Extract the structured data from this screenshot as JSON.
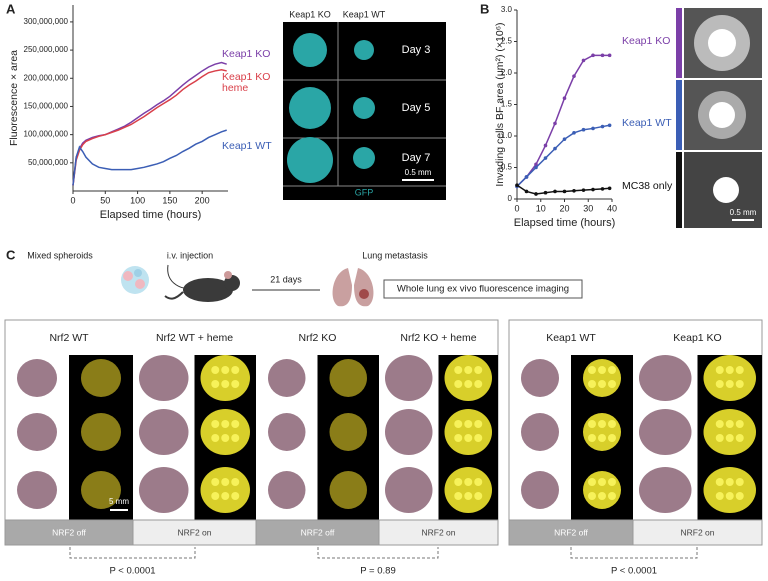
{
  "panel_labels": [
    "A",
    "B",
    "C"
  ],
  "chart_data": [
    {
      "type": "line",
      "xlabel": "Elapsed time (hours)",
      "ylabel": "Fluorescence × area",
      "x": [
        0,
        5,
        10,
        15,
        20,
        30,
        40,
        50,
        60,
        70,
        80,
        90,
        100,
        110,
        120,
        130,
        140,
        150,
        160,
        170,
        180,
        190,
        200,
        210,
        220,
        230,
        238
      ],
      "xlim": [
        0,
        240
      ],
      "xticks": [
        0,
        50,
        100,
        150,
        200
      ],
      "ylim": [
        0,
        330000000
      ],
      "yticks": [
        {
          "value": 50000000,
          "label": "50,000,000"
        },
        {
          "value": 100000000,
          "label": "100,000,000"
        },
        {
          "value": 150000000,
          "label": "150,000,000"
        },
        {
          "value": 200000000,
          "label": "200,000,000"
        },
        {
          "value": 250000000,
          "label": "250,000,000"
        },
        {
          "value": 300000000,
          "label": "300,000,000"
        }
      ],
      "series": [
        {
          "name": "Keap1 KO",
          "color": "#7b3fa8",
          "values": [
            10000000,
            60000000,
            75000000,
            85000000,
            90000000,
            95000000,
            98000000,
            100000000,
            105000000,
            110000000,
            115000000,
            122000000,
            130000000,
            138000000,
            145000000,
            153000000,
            160000000,
            168000000,
            178000000,
            188000000,
            197000000,
            205000000,
            213000000,
            220000000,
            225000000,
            228000000,
            225000000
          ]
        },
        {
          "name": "Keap1 KO heme",
          "color": "#d9404a",
          "values": [
            10000000,
            55000000,
            72000000,
            82000000,
            88000000,
            93000000,
            97000000,
            100000000,
            104000000,
            108000000,
            113000000,
            118000000,
            125000000,
            132000000,
            140000000,
            148000000,
            155000000,
            162000000,
            170000000,
            180000000,
            188000000,
            195000000,
            203000000,
            210000000,
            213000000,
            215000000,
            213000000
          ]
        },
        {
          "name": "Keap1 WT",
          "color": "#3b5eb5",
          "values": [
            10000000,
            60000000,
            78000000,
            70000000,
            60000000,
            48000000,
            42000000,
            40000000,
            38000000,
            38000000,
            38000000,
            38000000,
            40000000,
            42000000,
            45000000,
            48000000,
            52000000,
            58000000,
            63000000,
            70000000,
            76000000,
            83000000,
            88000000,
            95000000,
            100000000,
            105000000,
            108000000
          ]
        }
      ]
    },
    {
      "type": "line",
      "xlabel": "Elapsed time (hours)",
      "ylabel": "Invading cells BF area (μm²) (×10⁶)",
      "x": [
        0,
        4,
        8,
        12,
        16,
        20,
        24,
        28,
        32,
        36,
        39
      ],
      "xlim": [
        0,
        40
      ],
      "xticks": [
        0,
        10,
        20,
        30,
        40
      ],
      "ylim": [
        0,
        3
      ],
      "yticks": [
        0,
        0.5,
        {
          "value": 1,
          "label": "1.0"
        },
        1.5,
        {
          "value": 2,
          "label": "2.0"
        },
        2.5,
        {
          "value": 3,
          "label": "3.0"
        }
      ],
      "markers": true,
      "series": [
        {
          "name": "Keap1 KO",
          "color": "#7b3fa8",
          "values": [
            0.2,
            0.35,
            0.55,
            0.85,
            1.2,
            1.6,
            1.95,
            2.2,
            2.28,
            2.28,
            2.28
          ]
        },
        {
          "name": "Keap1 WT",
          "color": "#3b5eb5",
          "values": [
            0.2,
            0.35,
            0.5,
            0.65,
            0.8,
            0.95,
            1.05,
            1.1,
            1.12,
            1.15,
            1.17
          ]
        },
        {
          "name": "MC38 only",
          "color": "#111111",
          "values": [
            0.22,
            0.12,
            0.08,
            0.1,
            0.12,
            0.12,
            0.13,
            0.14,
            0.15,
            0.16,
            0.17
          ]
        }
      ]
    }
  ],
  "microscopy": {
    "columns": [
      "Keap1 KO",
      "Keap1 WT"
    ],
    "rows": [
      "Day 3",
      "Day 5",
      "Day 7"
    ],
    "scale_bar": "0.5 mm",
    "channel": "GFP"
  },
  "invasion_images": {
    "scale_bar": "0.5 mm"
  },
  "schematic": {
    "steps": [
      "Mixed spheroids",
      "i.v. injection",
      "21 days",
      "Lung metastasis"
    ],
    "readout": "Whole lung ex vivo fluorescence imaging"
  },
  "lung_panels": {
    "groups": [
      "Nrf2 WT",
      "Nrf2 WT + heme",
      "Nrf2 KO",
      "Nrf2 KO + heme",
      "Keap1 WT",
      "Keap1 KO"
    ],
    "scale_bar": "5 mm",
    "status": [
      "NRF2 off",
      "NRF2 on",
      "NRF2 off",
      "NRF2 on",
      "NRF2 off",
      "NRF2 on"
    ],
    "comparisons": [
      "P < 0.0001",
      "P = 0.89",
      "P < 0.0001"
    ]
  }
}
